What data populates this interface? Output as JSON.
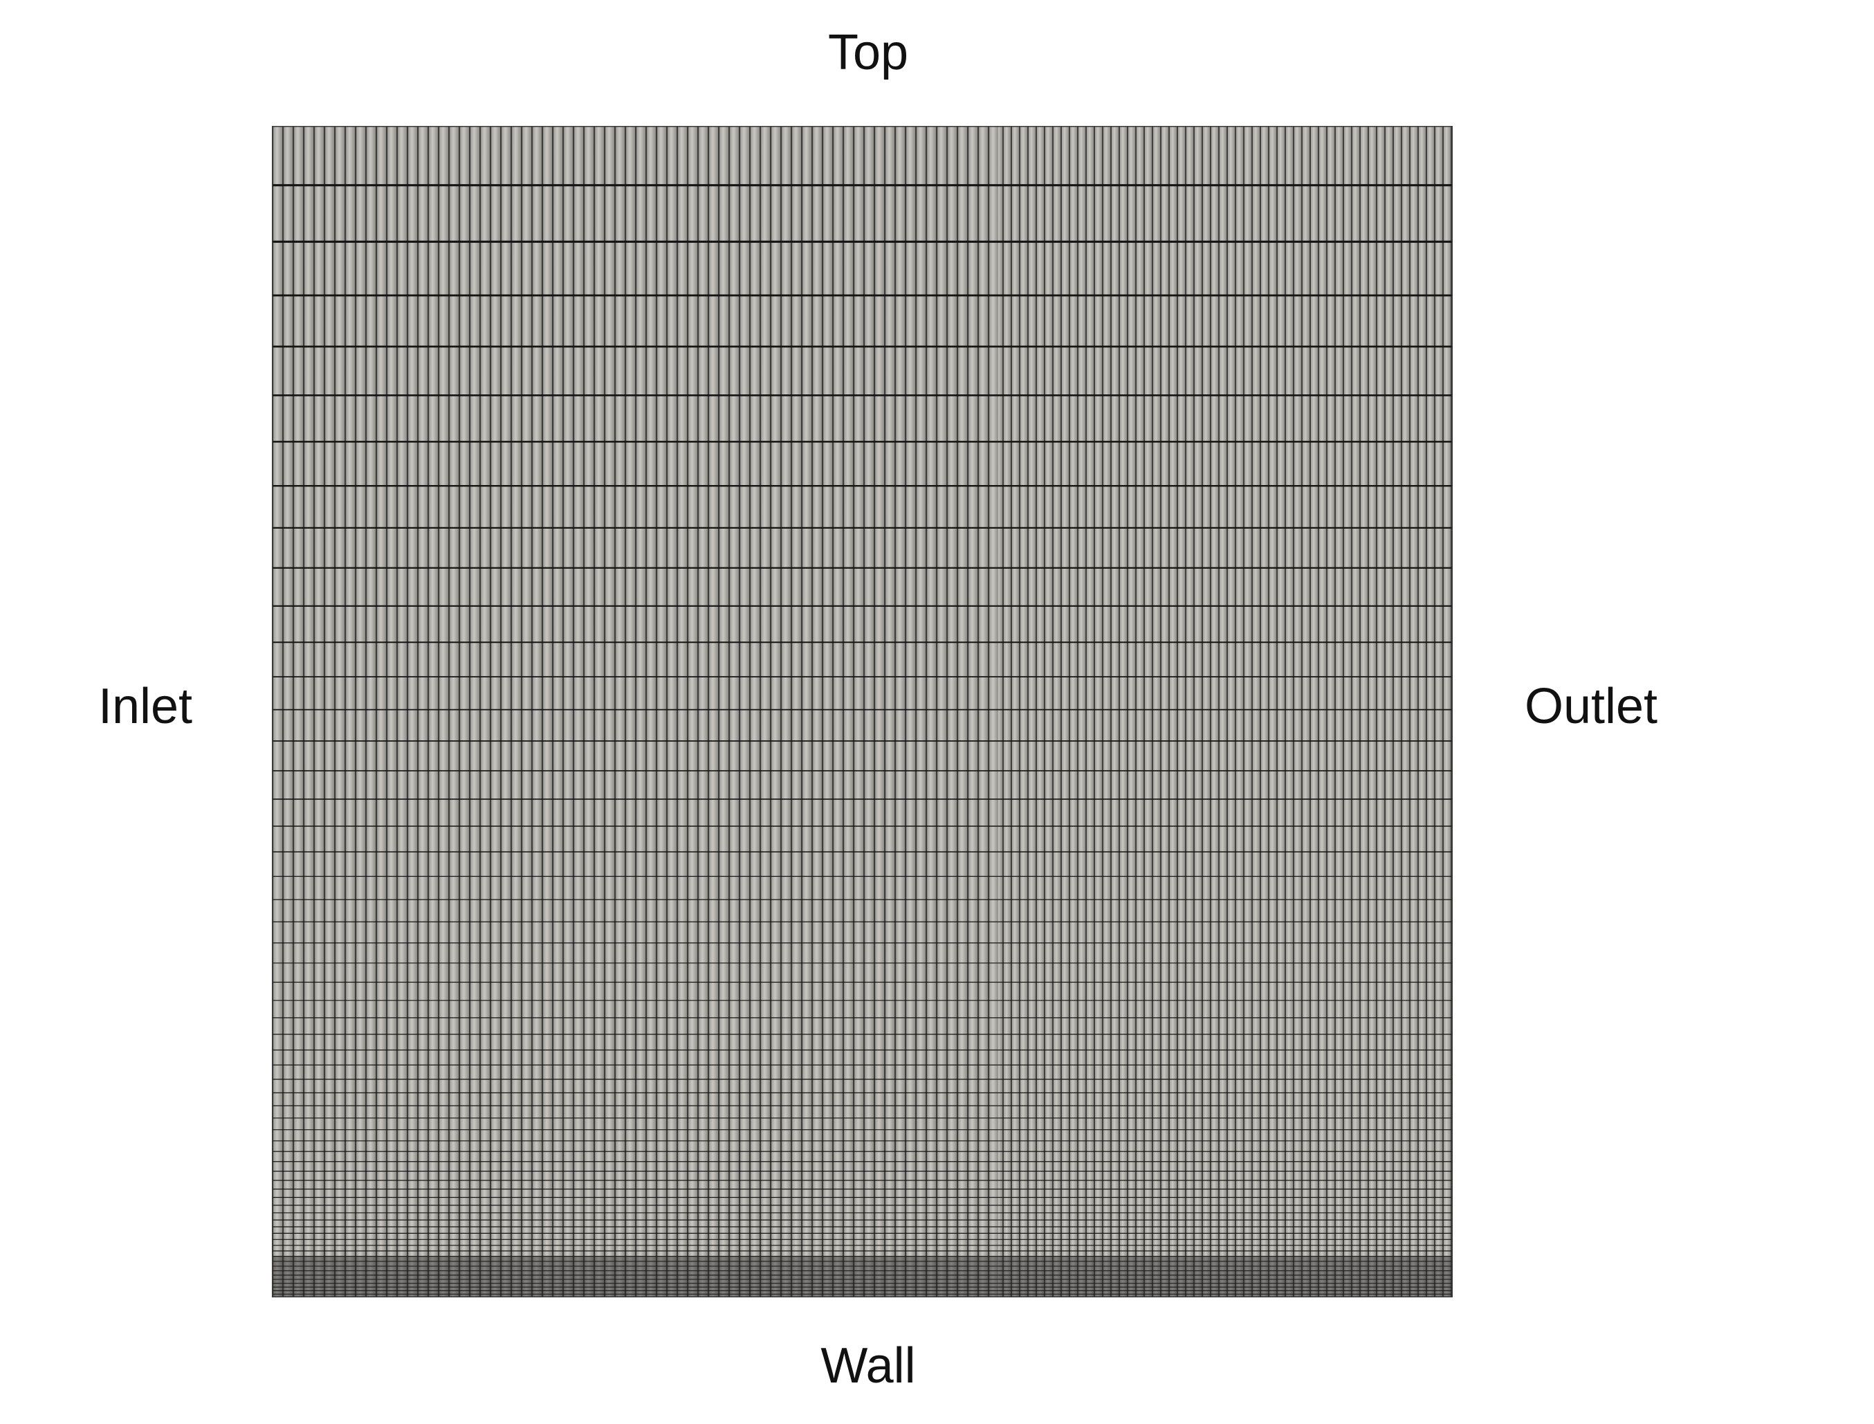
{
  "labels": {
    "top": "Top",
    "wall": "Wall",
    "inlet": "Inlet",
    "outlet": "Outlet"
  },
  "colors": {
    "background": "#ffffff",
    "mesh_fill": "#a8a6a1",
    "mesh_line": "#1a1a1a",
    "text": "#111111"
  }
}
